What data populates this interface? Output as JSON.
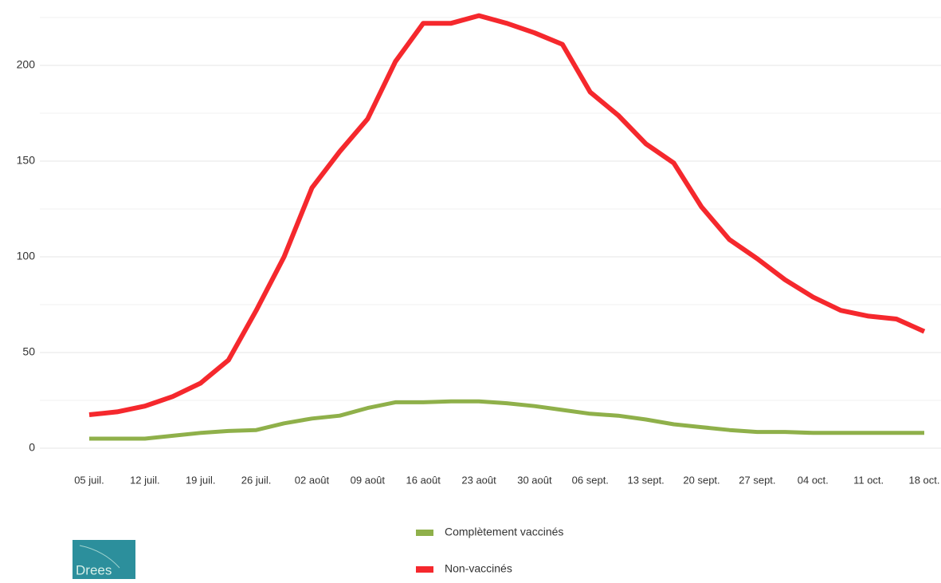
{
  "chart_data": {
    "type": "line",
    "x": [
      0,
      3.5,
      7,
      10.5,
      14,
      17.5,
      21,
      24.5,
      28,
      31.5,
      35,
      38.5,
      42,
      45.5,
      49,
      52.5,
      56,
      59.5,
      63,
      66.5,
      70,
      73.5,
      77,
      80.5,
      84,
      87.5,
      91,
      94.5,
      98,
      101.5,
      105
    ],
    "xlim": [
      0,
      105
    ],
    "xticks": [
      {
        "value": 0,
        "label": "05 juil."
      },
      {
        "value": 7,
        "label": "12 juil."
      },
      {
        "value": 14,
        "label": "19 juil."
      },
      {
        "value": 21,
        "label": "26 juil."
      },
      {
        "value": 28,
        "label": "02 août"
      },
      {
        "value": 35,
        "label": "09 août"
      },
      {
        "value": 42,
        "label": "16 août"
      },
      {
        "value": 49,
        "label": "23 août"
      },
      {
        "value": 56,
        "label": "30 août"
      },
      {
        "value": 63,
        "label": "06 sept."
      },
      {
        "value": 70,
        "label": "13 sept."
      },
      {
        "value": 77,
        "label": "20 sept."
      },
      {
        "value": 84,
        "label": "27 sept."
      },
      {
        "value": 91,
        "label": "04 oct."
      },
      {
        "value": 98,
        "label": "11 oct."
      },
      {
        "value": 105,
        "label": "18 oct."
      }
    ],
    "ylim": [
      0,
      228
    ],
    "yticks": [
      0,
      50,
      100,
      150,
      200
    ],
    "yminorticks": [
      25,
      75,
      125,
      175,
      225
    ],
    "grid": true,
    "series": [
      {
        "name": "Complètement vaccinés",
        "color": "#8fb04a",
        "values": [
          5,
          5,
          5,
          6.5,
          8,
          9,
          9.5,
          13,
          15.5,
          17,
          21,
          24,
          24,
          24.5,
          24.5,
          23.5,
          22,
          20,
          18,
          17,
          15,
          12.5,
          11,
          9.5,
          8.5,
          8.5,
          8,
          8,
          8,
          8,
          8
        ]
      },
      {
        "name": "Non-vaccinés",
        "color": "#f5282d",
        "values": [
          17.5,
          19,
          22,
          27,
          34,
          46,
          72,
          100,
          136,
          155,
          172,
          202,
          222,
          222,
          226,
          222,
          217,
          211,
          186,
          174,
          159,
          149,
          126,
          109,
          99,
          88,
          79,
          72,
          69,
          67.5,
          61
        ]
      }
    ],
    "logo": "Drees"
  }
}
